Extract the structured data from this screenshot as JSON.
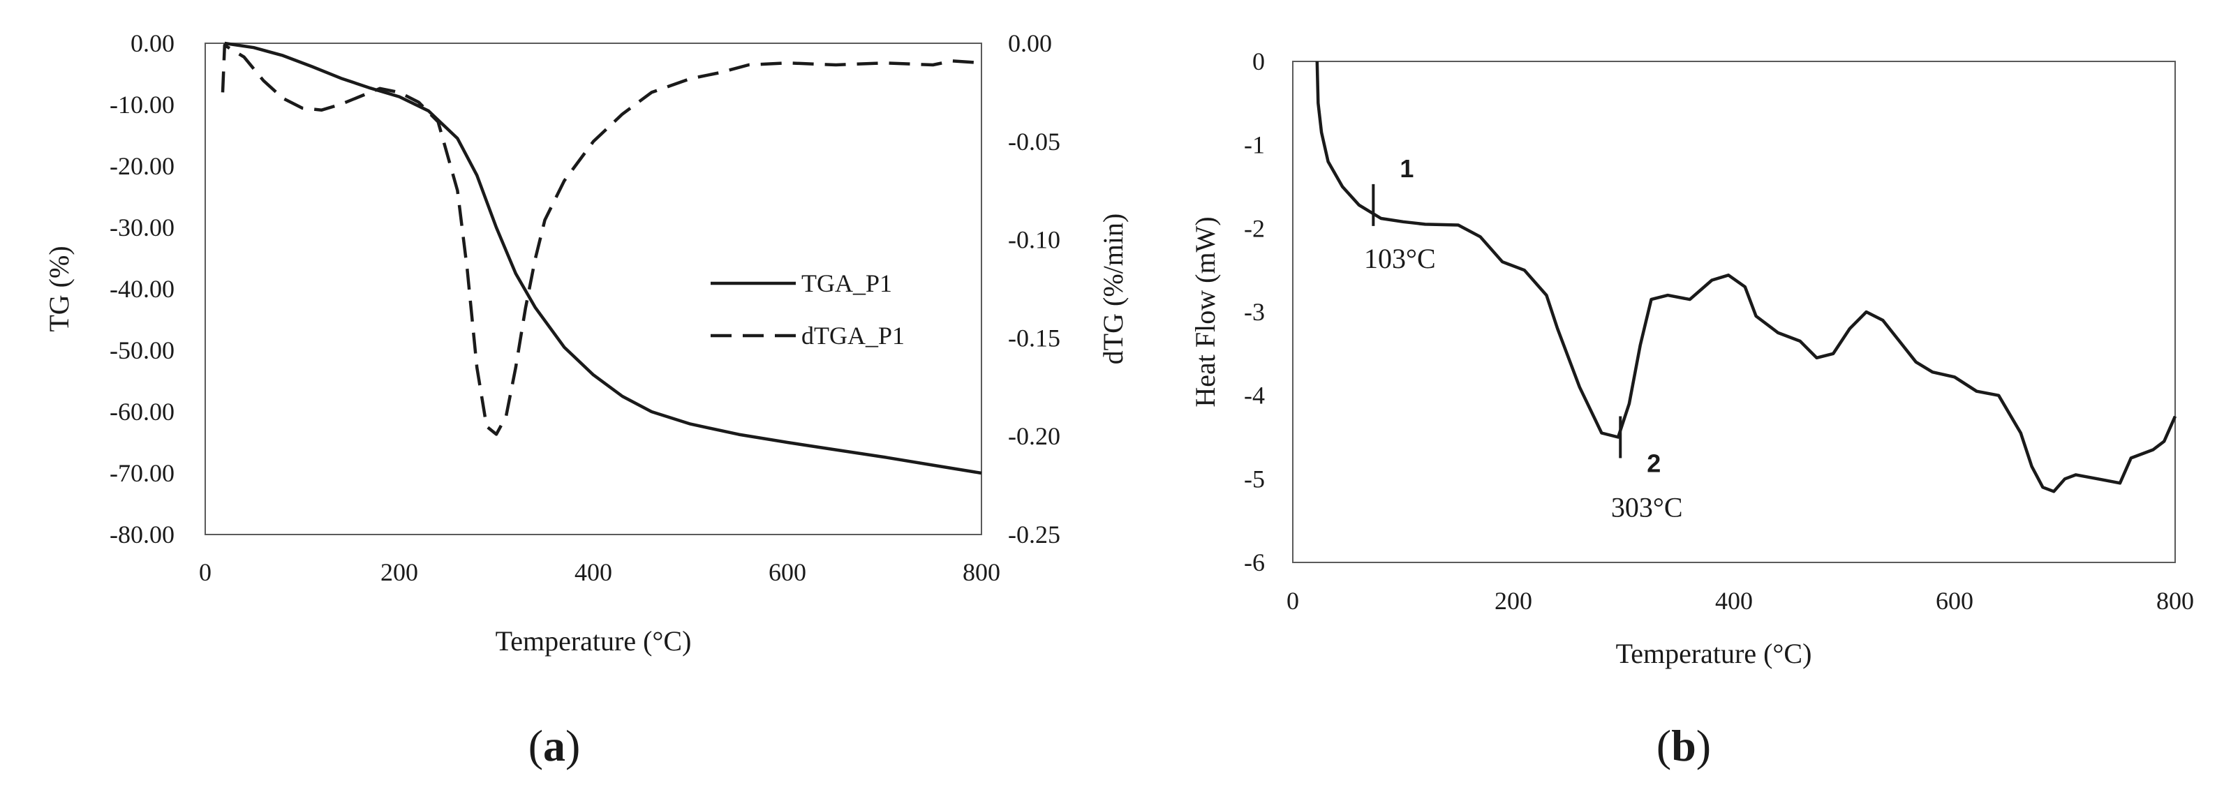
{
  "chart_data": [
    {
      "type": "line",
      "panel_label": "a",
      "xlabel": "Temperature (°C)",
      "ylabel": "TG (%)",
      "y2label": "dTG (%/min)",
      "xlim": [
        0,
        800
      ],
      "ylim": [
        -80,
        0
      ],
      "y2lim": [
        -0.25,
        0
      ],
      "x_ticks": [
        "0",
        "200",
        "400",
        "600",
        "800"
      ],
      "y_ticks": [
        "0.00",
        "-10.00",
        "-20.00",
        "-30.00",
        "-40.00",
        "-50.00",
        "-60.00",
        "-70.00",
        "-80.00"
      ],
      "y2_ticks": [
        "0.00",
        "-0.05",
        "-0.10",
        "-0.15",
        "-0.20",
        "-0.25"
      ],
      "legend": [
        "TGA_P1",
        "dTGA_P1"
      ],
      "series": [
        {
          "name": "TGA_P1",
          "axis": "left",
          "style": "solid",
          "x": [
            20,
            50,
            80,
            110,
            140,
            170,
            200,
            230,
            260,
            280,
            300,
            320,
            340,
            370,
            400,
            430,
            460,
            500,
            550,
            600,
            650,
            700,
            750,
            800
          ],
          "y": [
            0.0,
            -0.7,
            -2.0,
            -3.8,
            -5.7,
            -7.3,
            -8.7,
            -11.0,
            -15.5,
            -21.5,
            -30.0,
            -37.5,
            -43.0,
            -49.5,
            -54.0,
            -57.5,
            -60.0,
            -62.0,
            -63.7,
            -65.0,
            -66.2,
            -67.4,
            -68.7,
            -70.0
          ]
        },
        {
          "name": "dTGA_P1",
          "axis": "right",
          "style": "dashed",
          "x": [
            18,
            20,
            40,
            60,
            80,
            100,
            120,
            140,
            160,
            180,
            200,
            220,
            240,
            260,
            270,
            280,
            290,
            300,
            310,
            320,
            330,
            340,
            350,
            370,
            400,
            430,
            460,
            500,
            530,
            560,
            600,
            650,
            700,
            750,
            770,
            800
          ],
          "y": [
            -0.025,
            -0.001,
            -0.007,
            -0.019,
            -0.028,
            -0.033,
            -0.034,
            -0.031,
            -0.027,
            -0.023,
            -0.025,
            -0.03,
            -0.04,
            -0.075,
            -0.115,
            -0.165,
            -0.195,
            -0.199,
            -0.19,
            -0.165,
            -0.135,
            -0.11,
            -0.09,
            -0.07,
            -0.05,
            -0.036,
            -0.025,
            -0.018,
            -0.015,
            -0.011,
            -0.01,
            -0.011,
            -0.01,
            -0.011,
            -0.009,
            -0.01
          ]
        }
      ]
    },
    {
      "type": "line",
      "panel_label": "b",
      "xlabel": "Temperature (°C)",
      "ylabel": "Heat Flow (mW)",
      "xlim": [
        0,
        800
      ],
      "ylim": [
        -6,
        0
      ],
      "x_ticks": [
        "0",
        "200",
        "400",
        "600",
        "800"
      ],
      "y_ticks": [
        "0",
        "-1",
        "-2",
        "-3",
        "-4",
        "-5",
        "-6"
      ],
      "series": [
        {
          "name": "Heat Flow",
          "style": "solid",
          "x": [
            22,
            23,
            26,
            32,
            45,
            60,
            80,
            100,
            120,
            150,
            170,
            190,
            210,
            230,
            240,
            260,
            280,
            295,
            305,
            315,
            325,
            340,
            360,
            380,
            395,
            410,
            420,
            440,
            460,
            475,
            490,
            505,
            520,
            535,
            550,
            565,
            580,
            600,
            620,
            640,
            660,
            670,
            680,
            690,
            700,
            710,
            730,
            750,
            760,
            780,
            790,
            800
          ],
          "y": [
            0,
            -0.5,
            -0.85,
            -1.2,
            -1.5,
            -1.72,
            -1.88,
            -1.92,
            -1.95,
            -1.96,
            -2.1,
            -2.4,
            -2.5,
            -2.8,
            -3.2,
            -3.9,
            -4.45,
            -4.5,
            -4.1,
            -3.4,
            -2.85,
            -2.8,
            -2.85,
            -2.62,
            -2.56,
            -2.7,
            -3.05,
            -3.25,
            -3.35,
            -3.55,
            -3.5,
            -3.2,
            -3.0,
            -3.1,
            -3.35,
            -3.6,
            -3.72,
            -3.78,
            -3.95,
            -4.0,
            -4.45,
            -4.85,
            -5.1,
            -5.15,
            -5.0,
            -4.95,
            -5.0,
            -5.05,
            -4.75,
            -4.65,
            -4.55,
            -4.25
          ]
        }
      ],
      "annotations": [
        {
          "number": "1",
          "label": "103°C",
          "x": 73,
          "y": -1.72
        },
        {
          "number": "2",
          "label": "303°C",
          "x": 297,
          "y": -4.5
        }
      ]
    }
  ]
}
